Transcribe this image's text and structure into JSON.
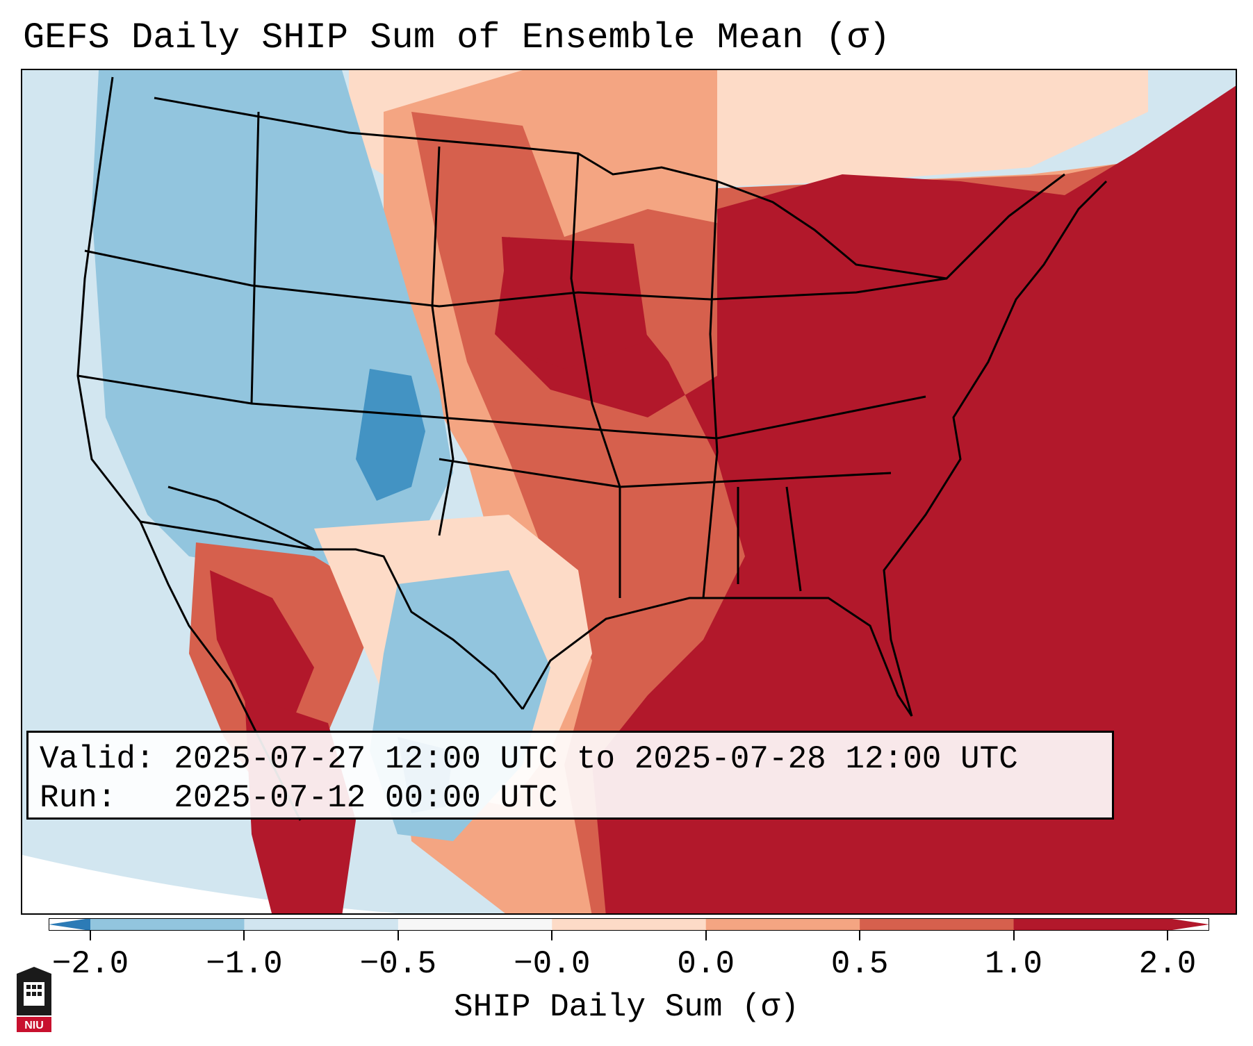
{
  "title": "GEFS Daily SHIP Sum of Ensemble Mean (σ)",
  "info": {
    "valid": "Valid: 2025-07-27 12:00 UTC to 2025-07-28 12:00 UTC",
    "run": "Run:   2025-07-12 00:00 UTC"
  },
  "colorbar": {
    "label": "SHIP Daily Sum (σ)",
    "ticks": [
      "−2.0",
      "−1.0",
      "−0.5",
      "−0.0",
      "0.0",
      "0.5",
      "1.0",
      "2.0"
    ],
    "colors": [
      "#2c7bb6",
      "#92c5de",
      "#d1e5f0",
      "#f7f7f7",
      "#fddbc7",
      "#f4a582",
      "#d6604d",
      "#b2182b"
    ]
  },
  "map": {
    "ocean_color": "#d2e6f0",
    "legend_colors": {
      "strong_neg": "#4393c3",
      "neg": "#92c5de",
      "weak_neg": "#d1e5f0",
      "weak_pos": "#fddbc7",
      "pos": "#f4a582",
      "mod_pos": "#d6604d",
      "strong_pos": "#b2182b"
    }
  },
  "logo": {
    "text": "NIU"
  }
}
